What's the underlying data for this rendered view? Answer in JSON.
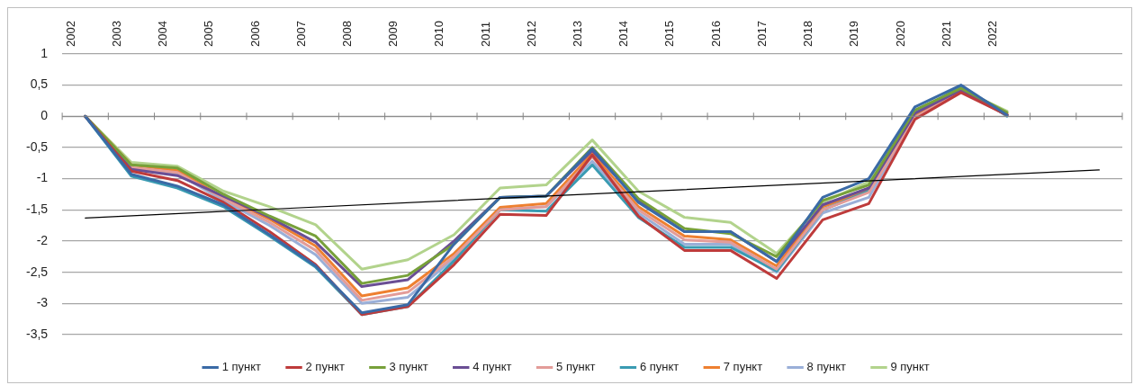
{
  "chart_data": {
    "type": "line",
    "categories": [
      "2002",
      "2003",
      "2004",
      "2005",
      "2006",
      "2007",
      "2008",
      "2009",
      "2010",
      "2011",
      "2012",
      "2013",
      "2014",
      "2015",
      "2016",
      "2017",
      "2018",
      "2019",
      "2020",
      "2021",
      "2022",
      null,
      null
    ],
    "series": [
      {
        "name": "1 пункт",
        "color": "#3a6aa6",
        "values": [
          0,
          -0.93,
          -1.12,
          -1.42,
          -1.9,
          -2.4,
          -3.15,
          -3.02,
          -2.05,
          -1.3,
          -1.28,
          -0.52,
          -1.38,
          -1.85,
          -1.85,
          -2.33,
          -1.3,
          -1.0,
          0.15,
          0.5,
          0.02,
          null,
          null
        ]
      },
      {
        "name": "2 пункт",
        "color": "#be3b3b",
        "values": [
          0,
          -0.88,
          -1.03,
          -1.38,
          -1.85,
          -2.38,
          -3.18,
          -3.05,
          -2.38,
          -1.57,
          -1.59,
          -0.62,
          -1.6,
          -2.15,
          -2.15,
          -2.6,
          -1.66,
          -1.4,
          -0.05,
          0.38,
          0.02,
          null,
          null
        ]
      },
      {
        "name": "3 пункт",
        "color": "#77a03a",
        "values": [
          0,
          -0.78,
          -0.83,
          -1.25,
          -1.6,
          -1.92,
          -2.68,
          -2.55,
          -2.05,
          -1.3,
          -1.28,
          -0.5,
          -1.32,
          -1.8,
          -1.88,
          -2.25,
          -1.35,
          -1.1,
          0.1,
          0.45,
          0.06,
          null,
          null
        ]
      },
      {
        "name": "4 пункт",
        "color": "#6a4e94",
        "values": [
          0,
          -0.85,
          -0.95,
          -1.28,
          -1.62,
          -2.02,
          -2.73,
          -2.62,
          -2.0,
          -1.3,
          -1.28,
          -0.55,
          -1.35,
          -1.85,
          -1.85,
          -2.33,
          -1.42,
          -1.15,
          0.05,
          0.42,
          0.02,
          null,
          null
        ]
      },
      {
        "name": "5 пункт",
        "color": "#e39c99",
        "values": [
          0,
          -0.82,
          -0.9,
          -1.32,
          -1.7,
          -2.15,
          -2.95,
          -2.82,
          -2.25,
          -1.5,
          -1.45,
          -0.65,
          -1.5,
          -1.98,
          -2.02,
          -2.45,
          -1.5,
          -1.22,
          -0.02,
          0.4,
          0.02,
          null,
          null
        ]
      },
      {
        "name": "6 пункт",
        "color": "#3a9bb2",
        "values": [
          0,
          -0.96,
          -1.15,
          -1.45,
          -1.92,
          -2.42,
          -3.18,
          -3.05,
          -2.32,
          -1.5,
          -1.52,
          -0.78,
          -1.62,
          -2.1,
          -2.1,
          -2.48,
          -1.5,
          -1.2,
          0.05,
          0.48,
          0.0,
          null,
          null
        ]
      },
      {
        "name": "7 пункт",
        "color": "#ee8030",
        "values": [
          0,
          -0.78,
          -0.87,
          -1.3,
          -1.65,
          -2.08,
          -2.88,
          -2.75,
          -2.2,
          -1.46,
          -1.4,
          -0.6,
          -1.45,
          -1.92,
          -1.98,
          -2.4,
          -1.45,
          -1.18,
          0.03,
          0.4,
          0.04,
          null,
          null
        ]
      },
      {
        "name": "8 пункт",
        "color": "#9aafd8",
        "values": [
          0,
          -0.85,
          -0.92,
          -1.35,
          -1.75,
          -2.22,
          -3.0,
          -2.9,
          -2.28,
          -1.5,
          -1.45,
          -0.72,
          -1.55,
          -2.05,
          -2.05,
          -2.5,
          -1.55,
          -1.3,
          0.0,
          0.4,
          0.02,
          null,
          null
        ]
      },
      {
        "name": "9 пункт",
        "color": "#b2d38c",
        "values": [
          0,
          -0.74,
          -0.8,
          -1.2,
          -1.45,
          -1.74,
          -2.45,
          -2.3,
          -1.9,
          -1.15,
          -1.1,
          -0.38,
          -1.2,
          -1.62,
          -1.7,
          -2.2,
          -1.38,
          -1.05,
          0.08,
          0.43,
          0.08,
          null,
          null
        ]
      },
      {
        "color": "#000000",
        "values": [
          -1.63,
          null,
          null,
          null,
          null,
          null,
          null,
          null,
          null,
          null,
          null,
          null,
          null,
          null,
          null,
          null,
          null,
          null,
          null,
          null,
          null,
          null,
          -0.86
        ]
      }
    ],
    "ylim": [
      -3.5,
      1
    ],
    "yticks": [
      {
        "value": -3.5,
        "label": "-3,5"
      },
      -3,
      {
        "value": -2.5,
        "label": "-2,5"
      },
      -2,
      {
        "value": -1.5,
        "label": "-1,5"
      },
      -1,
      {
        "value": -0.5,
        "label": "-0,5"
      },
      0,
      {
        "value": 0.5,
        "label": "0,5"
      },
      1
    ],
    "grid": "y",
    "legend": "bottom",
    "marker": "none",
    "line_style": "solid"
  }
}
